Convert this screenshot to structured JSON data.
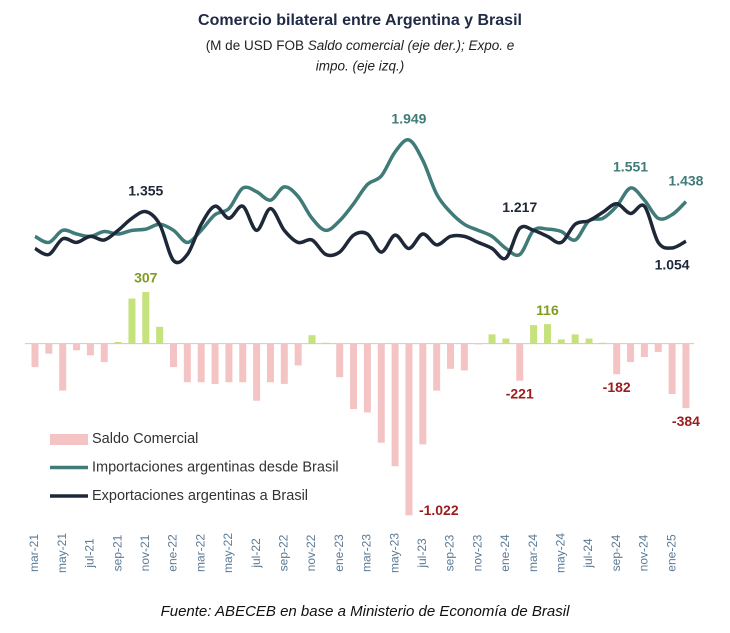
{
  "chart_data": {
    "type": "bar_line",
    "title": "Comercio bilateral entre Argentina y Brasil",
    "subtitle": [
      "(M de USD FOB",
      "Saldo comercial (eje der.); Expo. e",
      "impo. (eje izq.)"
    ],
    "source": "Fuente: ABECEB en base a Ministerio de Economía de Brasil",
    "categories": [
      "mar-21",
      null,
      "may-21",
      null,
      "jul-21",
      null,
      "sep-21",
      null,
      "nov-21",
      null,
      "ene-22",
      null,
      "mar-22",
      null,
      "may-22",
      null,
      "jul-22",
      null,
      "sep-22",
      null,
      "nov-22",
      null,
      "ene-23",
      null,
      "mar-23",
      null,
      "may-23",
      null,
      "jul-23",
      null,
      "sep-23",
      null,
      "nov-23",
      null,
      "ene-24",
      null,
      "mar-24",
      null,
      "may-24",
      null,
      "jul-24",
      null,
      "sep-24",
      null,
      "nov-24",
      null,
      "ene-25",
      null
    ],
    "ylim": [
      -1200,
      2280
    ],
    "y2lim": [
      -1050,
      1450
    ],
    "legend": "lower left",
    "series": [
      {
        "name": "Saldo Comercial",
        "type": "bar",
        "axis": "y2",
        "color": "#f4c4c4",
        "positive_color": "#c6e27c",
        "label_colors": [
          "#9b1c1c",
          "#7f9c1f"
        ],
        "values": [
          -140,
          -60,
          -280,
          -40,
          -70,
          -110,
          10,
          268,
          307,
          100,
          -140,
          -230,
          -230,
          -240,
          -230,
          -230,
          -340,
          -230,
          -240,
          -130,
          50,
          5,
          -200,
          -390,
          -410,
          -590,
          -730,
          -1022,
          -600,
          -280,
          -150,
          -160,
          -5,
          55,
          30,
          -221,
          110,
          116,
          25,
          55,
          30,
          5,
          -182,
          -110,
          -80,
          -50,
          -300,
          -384
        ],
        "value_labels": [
          null,
          null,
          null,
          null,
          null,
          null,
          null,
          null,
          "307",
          null,
          null,
          null,
          null,
          null,
          null,
          null,
          null,
          null,
          null,
          null,
          null,
          null,
          null,
          null,
          null,
          null,
          null,
          "-1.022",
          null,
          null,
          null,
          null,
          null,
          null,
          null,
          "-221",
          null,
          "116",
          null,
          null,
          null,
          null,
          "-182",
          null,
          null,
          null,
          null,
          "-384"
        ]
      },
      {
        "name": "Importaciones argentinas desde Brasil",
        "type": "line",
        "axis": "y",
        "color": "#3f7b78",
        "values": [
          1150,
          1100,
          1200,
          1170,
          1150,
          1190,
          1170,
          1200,
          1210,
          1250,
          1200,
          1100,
          1200,
          1330,
          1380,
          1550,
          1520,
          1450,
          1560,
          1480,
          1300,
          1200,
          1280,
          1420,
          1580,
          1650,
          1850,
          1949,
          1780,
          1500,
          1350,
          1250,
          1200,
          1150,
          1050,
          1000,
          1200,
          1210,
          1190,
          1120,
          1280,
          1300,
          1400,
          1551,
          1450,
          1300,
          1330,
          1438
        ],
        "value_labels": [
          null,
          null,
          null,
          null,
          null,
          null,
          null,
          null,
          null,
          null,
          null,
          null,
          null,
          null,
          null,
          null,
          null,
          null,
          null,
          null,
          null,
          null,
          null,
          null,
          null,
          null,
          null,
          "1.949",
          null,
          null,
          null,
          null,
          null,
          null,
          null,
          null,
          null,
          null,
          null,
          null,
          null,
          null,
          null,
          "1.551",
          null,
          null,
          null,
          "1.438"
        ]
      },
      {
        "name": "Exportaciones argentinas a Brasil",
        "type": "line",
        "axis": "y",
        "color": "#1e2838",
        "values": [
          1050,
          1000,
          1130,
          1100,
          1150,
          1120,
          1200,
          1300,
          1355,
          1250,
          950,
          1000,
          1250,
          1400,
          1300,
          1400,
          1200,
          1380,
          1200,
          1100,
          1120,
          1000,
          1020,
          1160,
          1170,
          1020,
          1160,
          1050,
          1170,
          1080,
          1150,
          1150,
          1100,
          1050,
          970,
          1217,
          1200,
          1150,
          1100,
          1250,
          1280,
          1350,
          1420,
          1340,
          1400,
          1100,
          1054,
          1110
        ],
        "value_labels": [
          null,
          null,
          null,
          null,
          null,
          null,
          null,
          null,
          "1.355",
          null,
          null,
          null,
          null,
          null,
          null,
          null,
          null,
          null,
          null,
          null,
          null,
          null,
          null,
          null,
          null,
          null,
          null,
          null,
          null,
          null,
          null,
          null,
          null,
          null,
          null,
          "1.217",
          null,
          null,
          null,
          null,
          null,
          null,
          null,
          null,
          null,
          null,
          "1.054",
          null
        ]
      }
    ]
  }
}
